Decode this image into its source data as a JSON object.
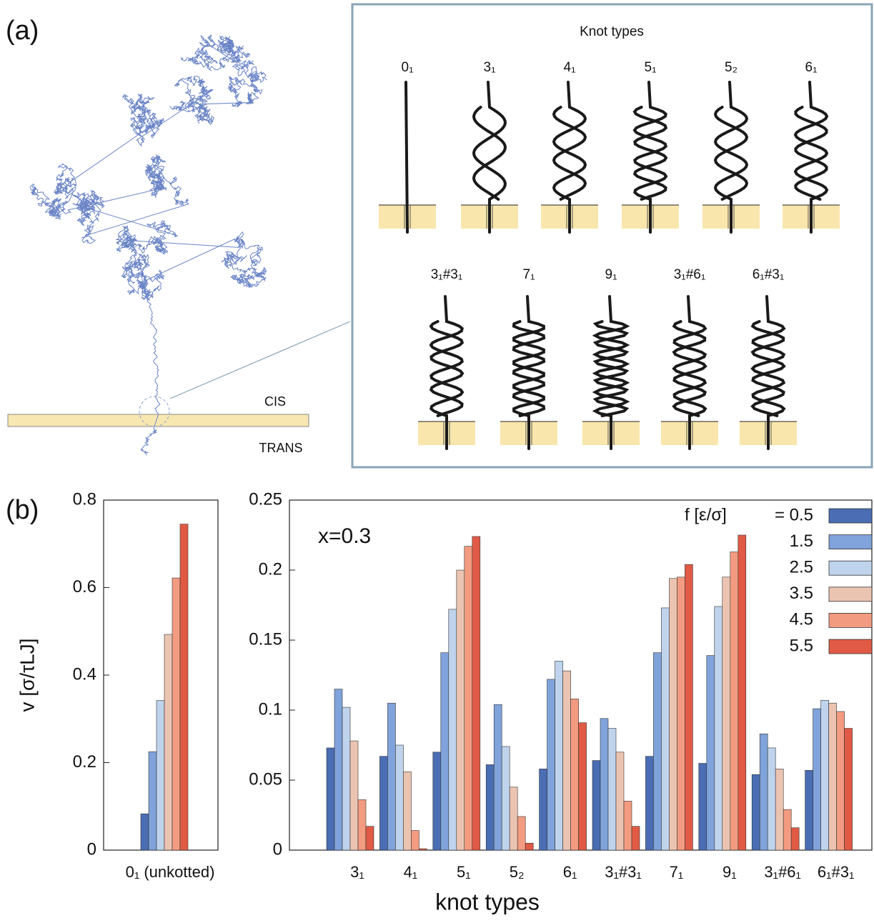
{
  "panel_a": {
    "label": "(a)",
    "box_title": "Knot types",
    "cis": "CIS",
    "trans": "TRANS",
    "knot_types": [
      "0₁",
      "3₁",
      "4₁",
      "5₁",
      "5₂",
      "6₁",
      "3₁#3₁",
      "7₁",
      "9₁",
      "3₁#6₁",
      "6₁#3₁"
    ]
  },
  "panel_b": {
    "label": "(b)"
  },
  "chart_data": [
    {
      "type": "bar",
      "ylabel": "v [σ/τLJ]",
      "categories": [
        "0₁ (unkotted)"
      ],
      "ylim": [
        0,
        0.8
      ],
      "yticks": [
        0,
        0.2,
        0.4,
        0.6,
        0.8
      ],
      "series": [
        {
          "color": "#4a6db3",
          "values": [
            0.083
          ]
        },
        {
          "color": "#7fa3da",
          "values": [
            0.225
          ]
        },
        {
          "color": "#bfd3ec",
          "values": [
            0.342
          ]
        },
        {
          "color": "#ebc4b1",
          "values": [
            0.493
          ]
        },
        {
          "color": "#f39b80",
          "values": [
            0.622
          ]
        },
        {
          "color": "#e05a45",
          "values": [
            0.745
          ]
        }
      ]
    },
    {
      "type": "bar",
      "xlabel": "knot types",
      "annotation": "x=0.3",
      "legend_title": "f [ε/σ]",
      "categories": [
        "3₁",
        "4₁",
        "5₁",
        "5₂",
        "6₁",
        "3₁#3₁",
        "7₁",
        "9₁",
        "3₁#6₁",
        "6₁#3₁"
      ],
      "ylim": [
        0,
        0.25
      ],
      "yticks": [
        0,
        0.05,
        0.1,
        0.15,
        0.2,
        0.25
      ],
      "series": [
        {
          "name": "= 0.5",
          "color": "#4a6db3",
          "values": [
            0.073,
            0.067,
            0.07,
            0.061,
            0.058,
            0.064,
            0.067,
            0.062,
            0.054,
            0.057
          ]
        },
        {
          "name": "1.5",
          "color": "#7fa3da",
          "values": [
            0.115,
            0.105,
            0.141,
            0.104,
            0.122,
            0.094,
            0.141,
            0.139,
            0.083,
            0.101
          ]
        },
        {
          "name": "2.5",
          "color": "#bfd3ec",
          "values": [
            0.102,
            0.075,
            0.172,
            0.074,
            0.135,
            0.087,
            0.173,
            0.174,
            0.073,
            0.107
          ]
        },
        {
          "name": "3.5",
          "color": "#ebc4b1",
          "values": [
            0.078,
            0.056,
            0.2,
            0.045,
            0.128,
            0.07,
            0.194,
            0.195,
            0.058,
            0.105
          ]
        },
        {
          "name": "4.5",
          "color": "#f39b80",
          "values": [
            0.036,
            0.014,
            0.217,
            0.024,
            0.108,
            0.035,
            0.195,
            0.213,
            0.029,
            0.099
          ]
        },
        {
          "name": "5.5",
          "color": "#e05a45",
          "values": [
            0.017,
            0.001,
            0.224,
            0.005,
            0.091,
            0.017,
            0.204,
            0.225,
            0.016,
            0.087
          ]
        }
      ]
    }
  ]
}
